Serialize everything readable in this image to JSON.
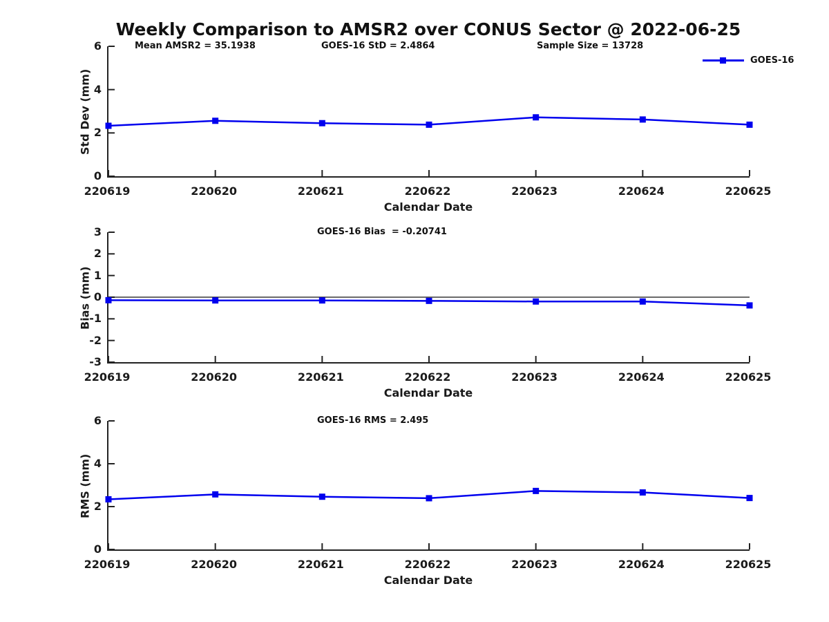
{
  "title": "Weekly Comparison to AMSR2 over CONUS Sector @ 2022-06-25",
  "colors": {
    "series": "#0000ee",
    "axis": "#222222",
    "text": "#1a1a1a"
  },
  "legend": {
    "label": "GOES-16"
  },
  "chart_data": [
    {
      "type": "line",
      "categories": [
        "220619",
        "220620",
        "220621",
        "220622",
        "220623",
        "220624",
        "220625"
      ],
      "series": [
        {
          "name": "GOES-16",
          "values": [
            2.33,
            2.56,
            2.45,
            2.38,
            2.72,
            2.62,
            2.38
          ]
        }
      ],
      "annotations": [
        "Mean AMSR2 = 35.1938",
        "GOES-16 StD = 2.4864",
        "Sample Size = 13728"
      ],
      "xlabel": "Calendar Date",
      "ylabel": "Std Dev (mm)",
      "ylim": [
        0,
        6
      ],
      "yticks": [
        0,
        2,
        4,
        6
      ],
      "grid": false,
      "legend_position": "top-right",
      "marker": "square"
    },
    {
      "type": "line",
      "categories": [
        "220619",
        "220620",
        "220621",
        "220622",
        "220623",
        "220624",
        "220625"
      ],
      "series": [
        {
          "name": "GOES-16",
          "values": [
            -0.14,
            -0.15,
            -0.15,
            -0.17,
            -0.2,
            -0.2,
            -0.38
          ]
        }
      ],
      "annotations": [
        "GOES-16 Bias  = -0.20741"
      ],
      "xlabel": "Calendar Date",
      "ylabel": "Bias (mm)",
      "ylim": [
        -3,
        3
      ],
      "yticks": [
        3,
        2,
        1,
        0,
        -1,
        -2,
        -3
      ],
      "zero_line": true,
      "grid": false,
      "marker": "square"
    },
    {
      "type": "line",
      "categories": [
        "220619",
        "220620",
        "220621",
        "220622",
        "220623",
        "220624",
        "220625"
      ],
      "series": [
        {
          "name": "GOES-16",
          "values": [
            2.34,
            2.57,
            2.46,
            2.39,
            2.73,
            2.66,
            2.4
          ]
        }
      ],
      "annotations": [
        "GOES-16 RMS = 2.495"
      ],
      "xlabel": "Calendar Date",
      "ylabel": "RMS (mm)",
      "ylim": [
        0,
        6
      ],
      "yticks": [
        0,
        2,
        4,
        6
      ],
      "grid": false,
      "marker": "square"
    }
  ]
}
